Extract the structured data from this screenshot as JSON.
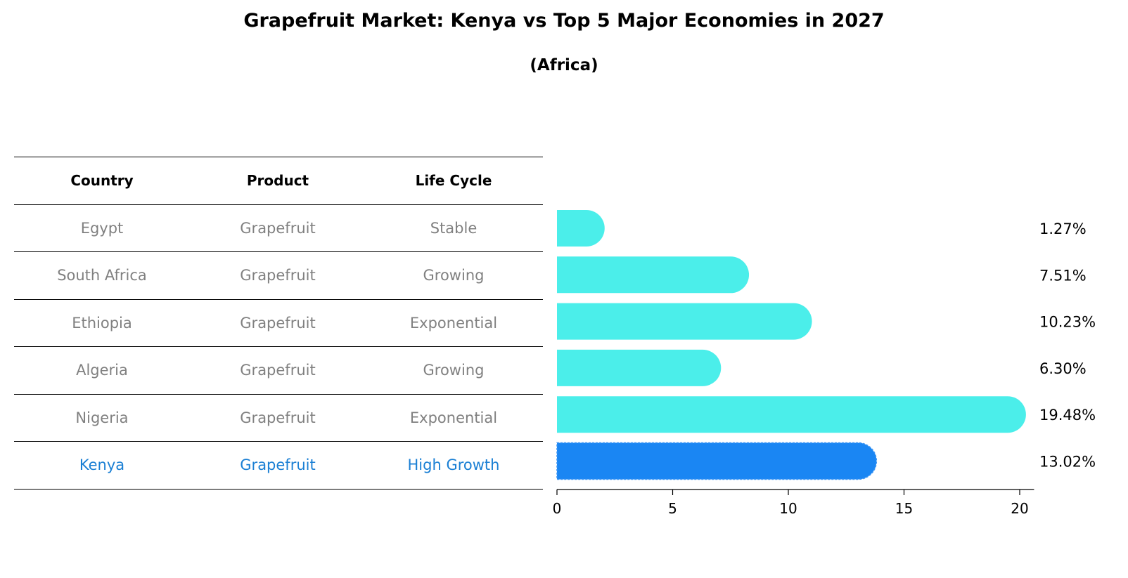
{
  "chart_data": {
    "type": "bar",
    "orientation": "horizontal",
    "title": "Grapefruit Market: Kenya vs Top 5 Major Economies in 2027",
    "subtitle": "(Africa)",
    "categories": [
      "Egypt",
      "South Africa",
      "Ethiopia",
      "Algeria",
      "Nigeria",
      "Kenya"
    ],
    "values": [
      1.27,
      7.51,
      10.23,
      6.3,
      19.48,
      13.02
    ],
    "value_labels": [
      "1.27%",
      "7.51%",
      "10.23%",
      "6.30%",
      "19.48%",
      "13.02%"
    ],
    "highlight_category": "Kenya",
    "xlim": [
      0,
      20.5
    ],
    "xticks": [
      0,
      5,
      10,
      15,
      20
    ],
    "xlabel": "",
    "ylabel": "",
    "grid": false,
    "colors": {
      "bar": "#4beeea",
      "highlight_bar": "#1a86f3",
      "highlight_text": "#1a7fd4",
      "table_text": "#808080"
    }
  },
  "table": {
    "headers": [
      "Country",
      "Product",
      "Life Cycle"
    ],
    "rows": [
      [
        "Egypt",
        "Grapefruit",
        "Stable"
      ],
      [
        "South Africa",
        "Grapefruit",
        "Growing"
      ],
      [
        "Ethiopia",
        "Grapefruit",
        "Exponential"
      ],
      [
        "Algeria",
        "Grapefruit",
        "Growing"
      ],
      [
        "Nigeria",
        "Grapefruit",
        "Exponential"
      ],
      [
        "Kenya",
        "Grapefruit",
        "High Growth"
      ]
    ]
  }
}
